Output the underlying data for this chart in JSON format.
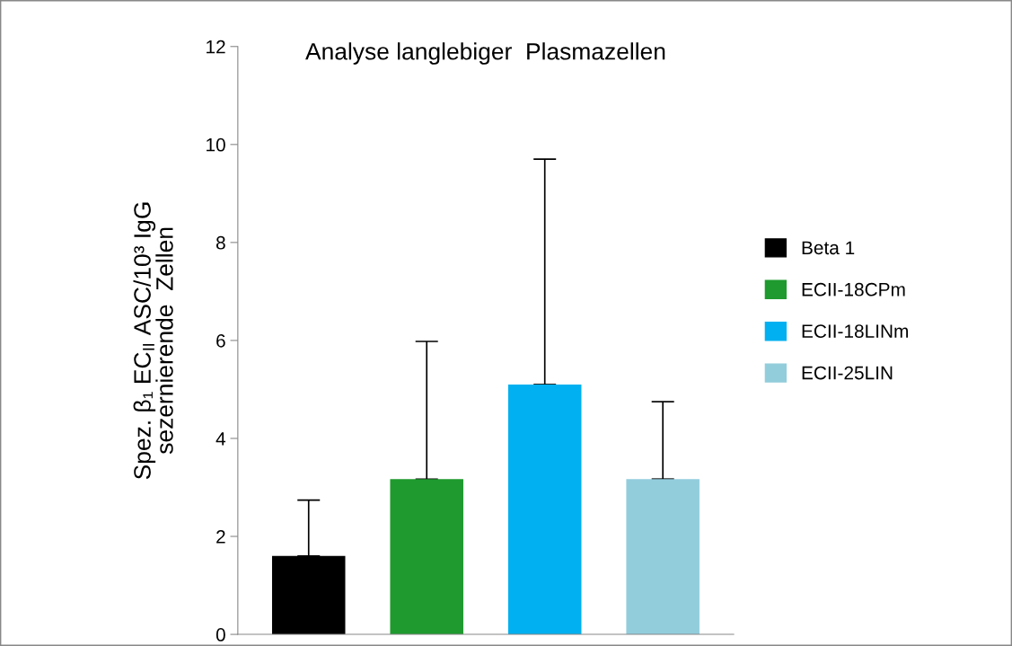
{
  "chart_data": {
    "type": "bar",
    "title": "Analyse langlebiger  Plasmazellen",
    "ylabel": "Spez. β₁ EC$_{II}$ ASC/10³ IgG\nsezernierende  Zellen",
    "categories": [
      null,
      null,
      null,
      null
    ],
    "series": [
      {
        "name": "Beta 1",
        "color": "#000000",
        "values": [
          1.6,
          null,
          null,
          null
        ],
        "errors": [
          [
            1.6,
            2.74
          ],
          null,
          null,
          null
        ]
      },
      {
        "name": "ECII-18CPm",
        "color": "#1e9a2e",
        "values": [
          null,
          3.17,
          null,
          null
        ],
        "errors": [
          null,
          [
            3.17,
            5.98
          ],
          null,
          null
        ]
      },
      {
        "name": "ECII-18LINm",
        "color": "#00b0f0",
        "values": [
          null,
          null,
          5.1,
          null
        ],
        "errors": [
          null,
          null,
          [
            5.1,
            9.7
          ],
          null
        ]
      },
      {
        "name": "ECII-25LIN",
        "color": "#92cddc",
        "values": [
          null,
          null,
          null,
          3.17
        ],
        "errors": [
          null,
          null,
          null,
          [
            3.17,
            4.75
          ]
        ]
      }
    ],
    "ylim": [
      0,
      12
    ],
    "yticks": [
      0,
      2,
      4,
      6,
      8,
      10,
      12
    ],
    "grid": false,
    "legend": "right"
  }
}
